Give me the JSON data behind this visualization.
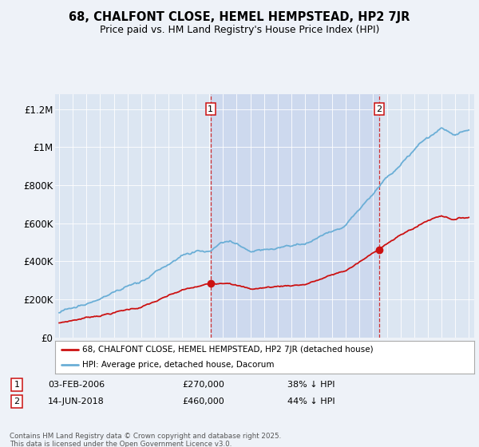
{
  "title": "68, CHALFONT CLOSE, HEMEL HEMPSTEAD, HP2 7JR",
  "subtitle": "Price paid vs. HM Land Registry's House Price Index (HPI)",
  "bg_color": "#eef2f8",
  "plot_bg_color": "#dce6f2",
  "highlight_color": "#cdd9ee",
  "hpi_color": "#6aaed6",
  "price_color": "#cc1111",
  "sale1_label": "03-FEB-2006",
  "sale1_price": "£270,000",
  "sale1_hpi": "38% ↓ HPI",
  "sale2_label": "14-JUN-2018",
  "sale2_price": "£460,000",
  "sale2_hpi": "44% ↓ HPI",
  "legend_line1": "68, CHALFONT CLOSE, HEMEL HEMPSTEAD, HP2 7JR (detached house)",
  "legend_line2": "HPI: Average price, detached house, Dacorum",
  "footer": "Contains HM Land Registry data © Crown copyright and database right 2025.\nThis data is licensed under the Open Government Licence v3.0.",
  "yticks": [
    0,
    200000,
    400000,
    600000,
    800000,
    1000000,
    1200000
  ],
  "ytick_labels": [
    "£0",
    "£200K",
    "£400K",
    "£600K",
    "£800K",
    "£1M",
    "£1.2M"
  ],
  "sale1_year": 2006.09,
  "sale2_year": 2018.45,
  "sale1_price_val": 270000,
  "sale2_price_val": 460000
}
